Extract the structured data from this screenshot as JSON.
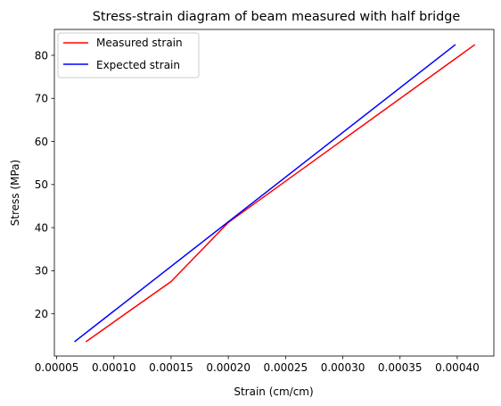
{
  "chart_data": {
    "type": "line",
    "title": "Stress-strain diagram of beam measured with half bridge",
    "xlabel": "Strain (cm/cm)",
    "ylabel": "Stress (MPa)",
    "xlim": [
      4.8e-05,
      0.000432
    ],
    "ylim": [
      10.2,
      86.0
    ],
    "xticks": [
      5e-05,
      0.0001,
      0.00015,
      0.0002,
      0.00025,
      0.0003,
      0.00035,
      0.0004
    ],
    "xtick_labels": [
      "0.00005",
      "0.00010",
      "0.00015",
      "0.00020",
      "0.00025",
      "0.00030",
      "0.00035",
      "0.00040"
    ],
    "yticks": [
      20,
      30,
      40,
      50,
      60,
      70,
      80
    ],
    "ytick_labels": [
      "20",
      "30",
      "40",
      "50",
      "60",
      "70",
      "80"
    ],
    "grid": false,
    "legend_position": "top-left",
    "series": [
      {
        "name": "Measured strain",
        "color": "#ff0000",
        "x": [
          7.6e-05,
          0.00015,
          0.0002,
          0.000415
        ],
        "y": [
          13.6,
          27.5,
          41.2,
          82.4
        ]
      },
      {
        "name": "Expected strain",
        "color": "#0000ff",
        "x": [
          6.6e-05,
          0.000398
        ],
        "y": [
          13.6,
          82.4
        ]
      }
    ]
  }
}
